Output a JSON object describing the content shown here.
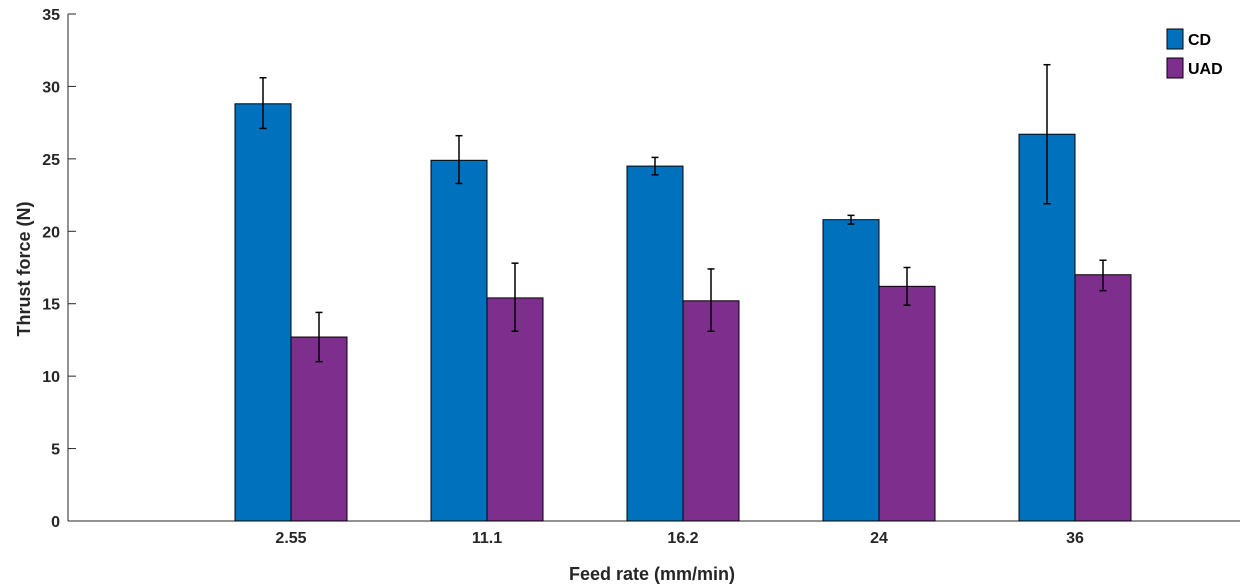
{
  "chart_data": {
    "type": "bar",
    "categories": [
      "2.55",
      "11.1",
      "16.2",
      "24",
      "36"
    ],
    "series": [
      {
        "name": "CD",
        "color": "#0072BD",
        "values": [
          28.8,
          24.9,
          24.5,
          20.8,
          26.7
        ],
        "error_low": [
          27.1,
          23.3,
          23.9,
          20.5,
          21.9
        ],
        "error_high": [
          30.6,
          26.6,
          25.1,
          21.1,
          31.5
        ]
      },
      {
        "name": "UAD",
        "color": "#7E2F8E",
        "values": [
          12.7,
          15.4,
          15.2,
          16.2,
          17.0
        ],
        "error_low": [
          11.0,
          13.1,
          13.1,
          14.9,
          15.9
        ],
        "error_high": [
          14.4,
          17.8,
          17.4,
          17.5,
          18.0
        ]
      }
    ],
    "xlabel": "Feed rate (mm/min)",
    "ylabel": "Thrust force (N)",
    "ylim": [
      0,
      35
    ],
    "yticks": [
      0,
      5,
      10,
      15,
      20,
      25,
      30,
      35
    ],
    "grid": false,
    "legend_position": "top-right"
  }
}
